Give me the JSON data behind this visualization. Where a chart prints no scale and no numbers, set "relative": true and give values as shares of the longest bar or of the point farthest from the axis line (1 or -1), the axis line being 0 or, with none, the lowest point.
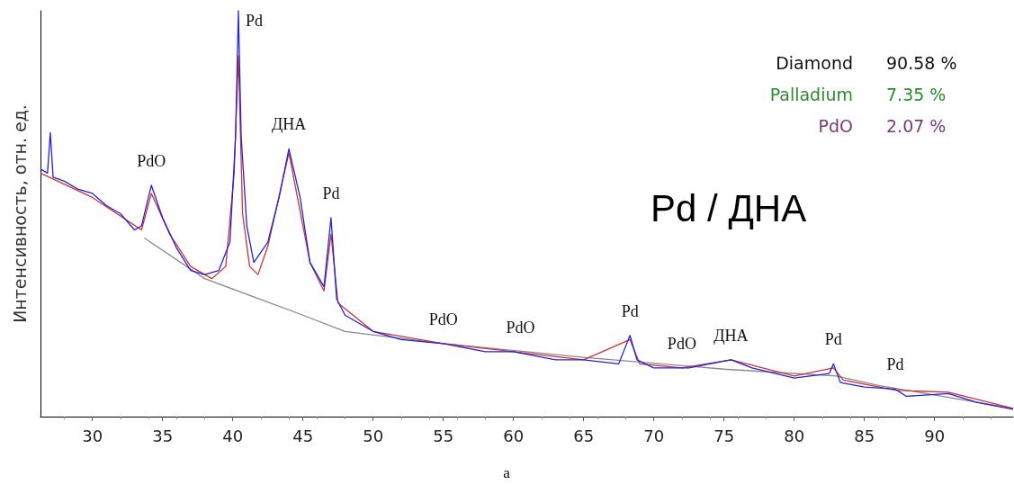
{
  "chart_data": {
    "type": "line",
    "title": "Pd / ДНА",
    "ylabel": "Интенсивность, отн. ед.",
    "relative": true,
    "grid": false,
    "marker": "none",
    "xlim": [
      26.3,
      95.6
    ],
    "xticks": [
      30,
      35,
      40,
      45,
      50,
      55,
      60,
      65,
      70,
      75,
      80,
      85,
      90
    ],
    "series": [
      {
        "color": "#2222dd",
        "x": [
          26.3,
          26.8,
          27,
          27.2,
          28,
          29,
          30,
          31,
          32,
          33,
          33.5,
          34.2,
          35,
          36,
          37,
          38,
          39,
          39.8,
          40.2,
          40.4,
          40.6,
          41,
          41.5,
          42.5,
          43.3,
          44,
          44.8,
          45.5,
          46.5,
          47,
          47.4,
          48,
          50,
          52,
          55,
          58,
          60,
          63,
          65,
          67.5,
          68.3,
          68.8,
          70,
          72.5,
          74,
          75.5,
          77,
          80,
          82.5,
          82.8,
          83.3,
          85,
          87.2,
          88,
          91,
          93,
          95.6
        ],
        "values": [
          0.61,
          0.6,
          0.7,
          0.59,
          0.58,
          0.56,
          0.55,
          0.52,
          0.5,
          0.46,
          0.47,
          0.57,
          0.49,
          0.415,
          0.36,
          0.35,
          0.36,
          0.43,
          0.69,
          1,
          0.69,
          0.47,
          0.38,
          0.43,
          0.54,
          0.66,
          0.54,
          0.38,
          0.32,
          0.49,
          0.29,
          0.25,
          0.21,
          0.19,
          0.18,
          0.16,
          0.16,
          0.14,
          0.14,
          0.13,
          0.2,
          0.14,
          0.12,
          0.12,
          0.13,
          0.14,
          0.12,
          0.095,
          0.106,
          0.13,
          0.084,
          0.073,
          0.068,
          0.05,
          0.057,
          0.035,
          0.018
        ]
      },
      {
        "color": "#cc3333",
        "x": [
          26.3,
          30,
          33.5,
          34.2,
          35.5,
          37,
          38.5,
          39.5,
          40.1,
          40.4,
          40.7,
          41.2,
          41.8,
          42.5,
          44,
          45.5,
          46.5,
          47,
          47.5,
          50,
          55,
          60,
          65,
          68.3,
          69,
          72,
          75.5,
          80,
          82.8,
          83.5,
          87.2,
          91,
          95.6
        ],
        "values": [
          0.6,
          0.54,
          0.46,
          0.55,
          0.45,
          0.37,
          0.34,
          0.37,
          0.6,
          0.89,
          0.5,
          0.37,
          0.35,
          0.42,
          0.65,
          0.38,
          0.31,
          0.45,
          0.28,
          0.21,
          0.18,
          0.16,
          0.14,
          0.19,
          0.13,
          0.12,
          0.14,
          0.1,
          0.12,
          0.09,
          0.065,
          0.06,
          0.02
        ]
      },
      {
        "color": "#888888",
        "x": [
          33.7,
          38,
          45,
          48,
          55,
          65,
          75,
          83,
          86,
          95.6
        ],
        "values": [
          0.44,
          0.34,
          0.25,
          0.21,
          0.18,
          0.146,
          0.117,
          0.1,
          0.077,
          0.02
        ]
      }
    ],
    "annotations": [
      {
        "text": "PdO",
        "x": 34.2,
        "y": 0.57
      },
      {
        "text": "Pd",
        "x": 40.4,
        "y": 1
      },
      {
        "text": "ДНА",
        "x": 44,
        "y": 0.66
      },
      {
        "text": "Pd",
        "x": 47,
        "y": 0.49
      },
      {
        "text": "PdO",
        "x": 55,
        "y": 0.18
      },
      {
        "text": "PdO",
        "x": 60.5,
        "y": 0.16
      },
      {
        "text": "Pd",
        "x": 68.3,
        "y": 0.2
      },
      {
        "text": "PdO",
        "x": 72,
        "y": 0.12
      },
      {
        "text": "ДНА",
        "x": 75.5,
        "y": 0.14
      },
      {
        "text": "Pd",
        "x": 82.8,
        "y": 0.13
      },
      {
        "text": "Pd",
        "x": 87.2,
        "y": 0.068
      },
      "Diamond",
      "90.58 %",
      "Palladium",
      "7.35 %",
      "PdO",
      "2.07 %",
      "а"
    ]
  }
}
